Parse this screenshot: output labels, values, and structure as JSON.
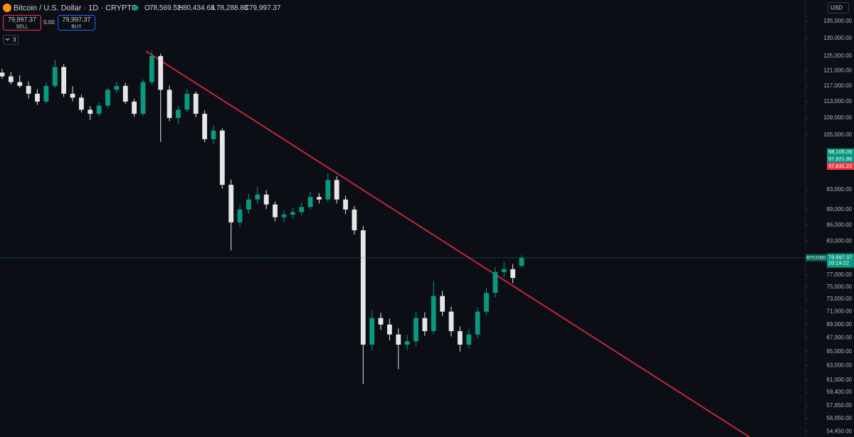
{
  "header": {
    "title": "Bitcoin / U.S. Dollar · 1D · CRYPTO",
    "ohlc_prefixes": [
      "O",
      "H",
      "L",
      "C"
    ],
    "ohlc_labels": [
      "78,569.52",
      "80,434.68",
      "78,288.83",
      "79,997.37"
    ],
    "sell": {
      "price": "79,997.37",
      "label": "SELL"
    },
    "spread": "0.00",
    "buy": {
      "price": "79,997.37",
      "label": "BUY"
    },
    "indicators_count": "3",
    "currency": "USD"
  },
  "chart_data": {
    "type": "candlestick",
    "open": [
      120500,
      119500,
      118000,
      117000,
      115000,
      113000,
      117000,
      122000,
      115000,
      114000,
      111000,
      110000,
      112000,
      116000,
      117000,
      113000,
      110000,
      118000,
      125000,
      116000,
      109000,
      111000,
      115000,
      110000,
      104000,
      106000,
      94000,
      86500,
      89000,
      91000,
      92000,
      90000,
      87500,
      88000,
      88500,
      89500,
      91500,
      91000,
      95000,
      91000,
      89000,
      85000,
      66000,
      70000,
      69000,
      67500,
      66000,
      66500,
      70000,
      68000,
      73500,
      71000,
      68000,
      66000,
      67500,
      71000,
      74000,
      77500,
      78000,
      78569.52
    ],
    "high": [
      121500,
      120600,
      119800,
      118200,
      116200,
      117800,
      124000,
      122800,
      116900,
      114800,
      111900,
      112800,
      116600,
      118200,
      117800,
      113700,
      118700,
      126500,
      125700,
      117100,
      111900,
      116200,
      115600,
      110800,
      107300,
      106500,
      95100,
      89900,
      92100,
      93500,
      92900,
      90600,
      88900,
      89300,
      90400,
      92600,
      92300,
      96500,
      95800,
      91800,
      89700,
      85800,
      71200,
      70800,
      69900,
      68400,
      67400,
      71000,
      70900,
      76000,
      74300,
      71800,
      68700,
      68300,
      71700,
      74800,
      78300,
      79300,
      78900,
      80434.68
    ],
    "low": [
      118800,
      117400,
      116500,
      113800,
      112200,
      112500,
      116400,
      114200,
      113100,
      110300,
      108500,
      109300,
      111400,
      115200,
      112400,
      109300,
      109600,
      117300,
      103400,
      108200,
      107500,
      110400,
      109100,
      103300,
      102800,
      93200,
      81300,
      85700,
      88200,
      90100,
      89100,
      86700,
      86600,
      87200,
      87800,
      89000,
      90200,
      90400,
      90200,
      88100,
      84200,
      60500,
      65200,
      68200,
      66600,
      62500,
      65200,
      65800,
      67300,
      67500,
      70300,
      67200,
      65000,
      65400,
      66900,
      70400,
      73300,
      76600,
      75600,
      78288.83
    ],
    "close": [
      119500,
      118000,
      117000,
      115000,
      113000,
      117000,
      122000,
      115000,
      114000,
      111000,
      110000,
      112000,
      116000,
      117000,
      113000,
      110000,
      118000,
      125000,
      116000,
      109000,
      111000,
      115000,
      110000,
      104000,
      106000,
      94000,
      86500,
      89000,
      91000,
      92000,
      90000,
      87500,
      88000,
      88500,
      89500,
      91500,
      91000,
      95000,
      91000,
      89000,
      85000,
      66000,
      70000,
      69000,
      67500,
      66000,
      66500,
      70000,
      68000,
      73500,
      71000,
      68000,
      66000,
      67500,
      71000,
      74000,
      77500,
      78000,
      76500,
      79997.37
    ],
    "up_color": "#089981",
    "down_color": "#e6e6e6",
    "ylim": [
      53800,
      141500
    ],
    "log_scale": true,
    "grid": false,
    "yticks": [
      {
        "value": 135000,
        "label": "135,000.00"
      },
      {
        "value": 130000,
        "label": "130,000.00"
      },
      {
        "value": 125000,
        "label": "125,000.00"
      },
      {
        "value": 121000,
        "label": "121,000.00"
      },
      {
        "value": 117000,
        "label": "117,000.00"
      },
      {
        "value": 113000,
        "label": "113,000.00"
      },
      {
        "value": 109000,
        "label": "109,000.00"
      },
      {
        "value": 105000,
        "label": "105,000.00"
      },
      {
        "value": 93000,
        "label": "93,000.00"
      },
      {
        "value": 89000,
        "label": "89,000.00"
      },
      {
        "value": 86000,
        "label": "86,000.00"
      },
      {
        "value": 83000,
        "label": "83,000.00"
      },
      {
        "value": 77000,
        "label": "77,000.00"
      },
      {
        "value": 75000,
        "label": "75,000.00"
      },
      {
        "value": 73000,
        "label": "73,000.00"
      },
      {
        "value": 71000,
        "label": "71,000.00"
      },
      {
        "value": 69000,
        "label": "69,000.00"
      },
      {
        "value": 67000,
        "label": "67,000.00"
      },
      {
        "value": 65000,
        "label": "65,000.00"
      },
      {
        "value": 63000,
        "label": "63,000.00"
      },
      {
        "value": 61000,
        "label": "61,000.00"
      },
      {
        "value": 59400,
        "label": "59,400.00"
      },
      {
        "value": 57650,
        "label": "57,650.00"
      },
      {
        "value": 56050,
        "label": "56,050.00"
      },
      {
        "value": 54450,
        "label": "54,450.00"
      }
    ],
    "symbol_tag": {
      "symbol": "BTCUSD",
      "price": "79,997.37",
      "countdown": "20:19:22"
    },
    "price_tags": [
      {
        "label": "98,105.09",
        "color": "#089981"
      },
      {
        "label": "97,921.86",
        "color": "#089981"
      },
      {
        "label": "97,831.22",
        "color": "#f23645"
      }
    ]
  }
}
